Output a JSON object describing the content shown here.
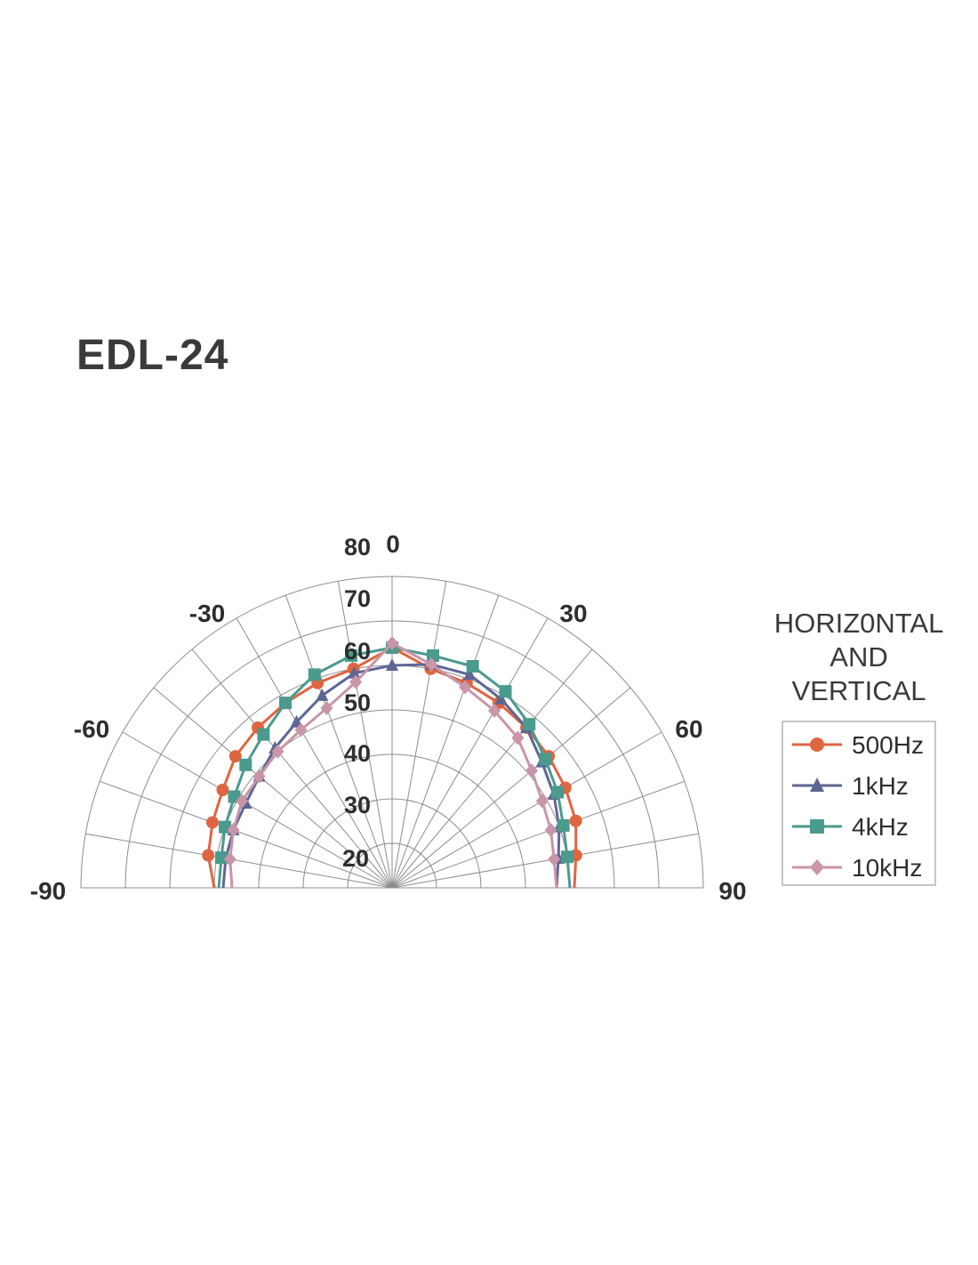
{
  "title": "EDL-24",
  "chart_data": {
    "type": "polar-line",
    "title": "EDL-24",
    "angle_range_deg": [
      -90,
      90
    ],
    "angle_ticks": [
      -90,
      -60,
      -30,
      0,
      30,
      60,
      90
    ],
    "radial_range": [
      10,
      80
    ],
    "radial_ticks": [
      20,
      30,
      40,
      50,
      60,
      70,
      80
    ],
    "angles": [
      -90,
      -80,
      -70,
      -60,
      -50,
      -40,
      -30,
      -20,
      -10,
      0,
      10,
      20,
      30,
      40,
      50,
      60,
      70,
      80,
      90
    ],
    "series": [
      {
        "name": "500Hz",
        "color": "#df6542",
        "marker": "circle",
        "values": [
          50,
          52,
          53,
          54,
          56,
          57,
          58,
          59,
          60,
          64,
          60,
          59,
          58,
          57,
          56,
          55,
          54,
          52,
          51
        ]
      },
      {
        "name": "1kHz",
        "color": "#5e6694",
        "marker": "triangle",
        "values": [
          48,
          48,
          48,
          48,
          49,
          51,
          53,
          56,
          59,
          60,
          61,
          61,
          59,
          57,
          54,
          52,
          50,
          48,
          47
        ]
      },
      {
        "name": "4kHz",
        "color": "#4a9a8e",
        "marker": "square",
        "values": [
          49,
          49,
          50,
          51,
          53,
          55,
          58,
          61,
          63,
          64,
          63,
          63,
          61,
          58,
          55,
          53,
          51,
          50,
          50
        ]
      },
      {
        "name": "10kHz",
        "color": "#c995a8",
        "marker": "diamond",
        "values": [
          46,
          47,
          48,
          49,
          49,
          50,
          51,
          53,
          57,
          65,
          61,
          58,
          56,
          54,
          51,
          49,
          48,
          47,
          47
        ]
      }
    ],
    "legend": {
      "title_lines": [
        "HORIZ0NTAL",
        "AND",
        "VERTICAL"
      ],
      "position": "right"
    },
    "grid": true
  }
}
